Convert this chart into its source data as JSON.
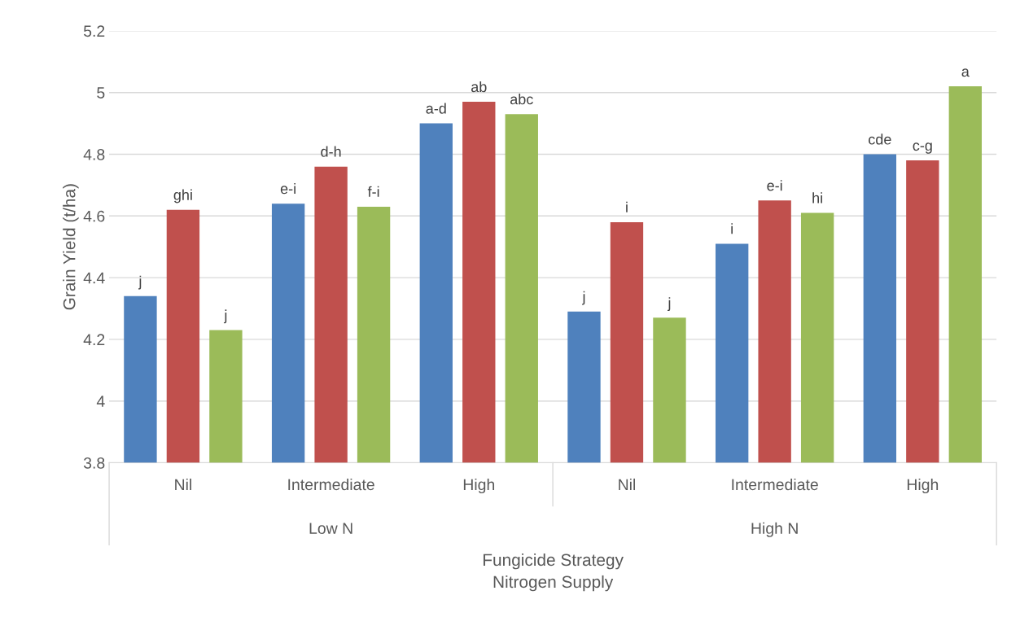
{
  "chart_data": {
    "type": "bar",
    "categories": [
      "Nil",
      "Intermediate",
      "High",
      "Nil",
      "Intermediate",
      "High"
    ],
    "xlabel": "Fungicide Strategy\nNitrogen Supply",
    "ylabel": "Grain Yield (t/ha)",
    "annotations": [
      "Low N",
      "High N"
    ],
    "series": [
      {
        "color": "#4f81bd",
        "values": [
          4.34,
          4.64,
          4.9,
          4.29,
          4.51,
          4.8
        ],
        "value_labels": [
          "j",
          "e-i",
          "a-d",
          "j",
          "i",
          "cde"
        ]
      },
      {
        "color": "#c0504d",
        "values": [
          4.62,
          4.76,
          4.97,
          4.58,
          4.65,
          4.78
        ],
        "value_labels": [
          "ghi",
          "d-h",
          "ab",
          "i",
          "e-i",
          "c-g"
        ]
      },
      {
        "color": "#9bbb59",
        "values": [
          4.23,
          4.63,
          4.93,
          4.27,
          4.61,
          5.02
        ],
        "value_labels": [
          "j",
          "f-i",
          "abc",
          "j",
          "hi",
          "a"
        ]
      }
    ],
    "ylim": [
      3.8,
      5.2
    ],
    "yticks": [
      3.8,
      4,
      4.2,
      4.4,
      4.6,
      4.8,
      5,
      5.2
    ],
    "grid": "y"
  }
}
